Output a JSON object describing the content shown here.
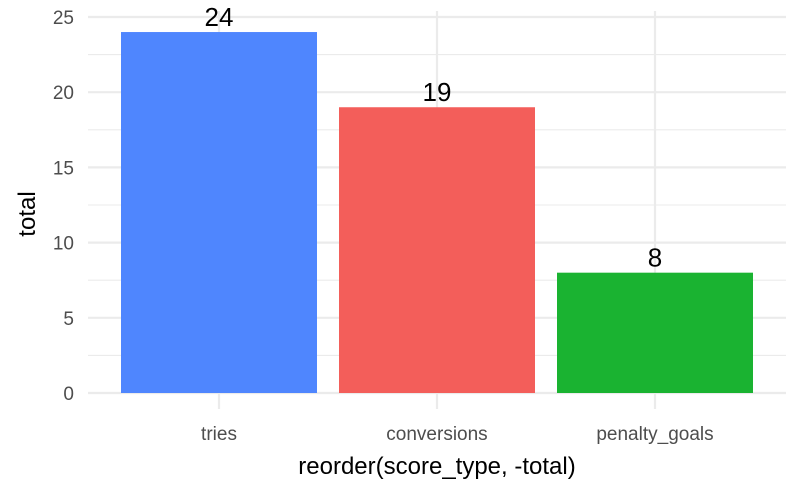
{
  "chart_data": {
    "type": "bar",
    "categories": [
      "tries",
      "conversions",
      "penalty_goals"
    ],
    "values": [
      24,
      19,
      8
    ],
    "colors": [
      "#4f86fe",
      "#f35e5a",
      "#1ab331"
    ],
    "data_labels": [
      "24",
      "19",
      "8"
    ],
    "xlabel": "reorder(score_type, -total)",
    "ylabel": "total",
    "ylim": [
      0,
      25
    ],
    "yticks": [
      0,
      5,
      10,
      15,
      20,
      25
    ],
    "ytick_labels": [
      "0",
      "5",
      "10",
      "15",
      "20",
      "25"
    ],
    "grid": true,
    "legend": "none"
  }
}
